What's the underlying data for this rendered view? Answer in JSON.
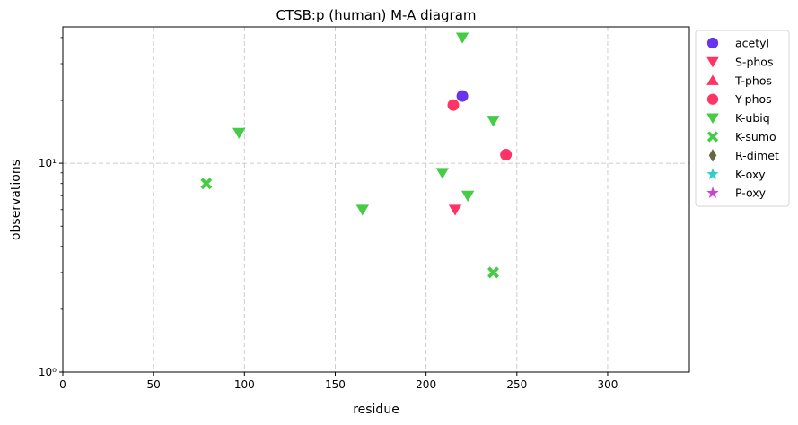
{
  "chart_data": {
    "type": "scatter",
    "title": "CTSB:p (human) M-A diagram",
    "xlabel": "residue",
    "ylabel": "observations",
    "xlim": [
      0,
      345
    ],
    "ylim": [
      1,
      45
    ],
    "yscale": "log",
    "grid": true,
    "legend_position": "outside right top",
    "x_ticks": [
      0,
      50,
      100,
      150,
      200,
      250,
      300
    ],
    "y_ticks": [
      {
        "value": 1,
        "label": "10⁰"
      },
      {
        "value": 10,
        "label": "10¹"
      }
    ],
    "series": [
      {
        "name": "acetyl",
        "marker": "circle",
        "color": "#6633ee",
        "points": [
          {
            "x": 220,
            "y": 21
          }
        ]
      },
      {
        "name": "S-phos",
        "marker": "triangle-down",
        "color": "#ff3366",
        "points": [
          {
            "x": 216,
            "y": 6
          }
        ]
      },
      {
        "name": "T-phos",
        "marker": "triangle-up",
        "color": "#ff3366",
        "points": []
      },
      {
        "name": "Y-phos",
        "marker": "circle",
        "color": "#ff3366",
        "points": [
          {
            "x": 215,
            "y": 19
          },
          {
            "x": 244,
            "y": 11
          }
        ]
      },
      {
        "name": "K-ubiq",
        "marker": "triangle-down",
        "color": "#44cc44",
        "points": [
          {
            "x": 97,
            "y": 14
          },
          {
            "x": 165,
            "y": 6
          },
          {
            "x": 209,
            "y": 9
          },
          {
            "x": 220,
            "y": 40
          },
          {
            "x": 223,
            "y": 7
          },
          {
            "x": 237,
            "y": 16
          }
        ]
      },
      {
        "name": "K-sumo",
        "marker": "x-filled",
        "color": "#44cc44",
        "points": [
          {
            "x": 79,
            "y": 8
          },
          {
            "x": 237,
            "y": 3
          }
        ]
      },
      {
        "name": "R-dimet",
        "marker": "diamond-thin",
        "color": "#666644",
        "points": []
      },
      {
        "name": "K-oxy",
        "marker": "star",
        "color": "#33cccc",
        "points": []
      },
      {
        "name": "P-oxy",
        "marker": "star",
        "color": "#cc44cc",
        "points": []
      }
    ]
  }
}
